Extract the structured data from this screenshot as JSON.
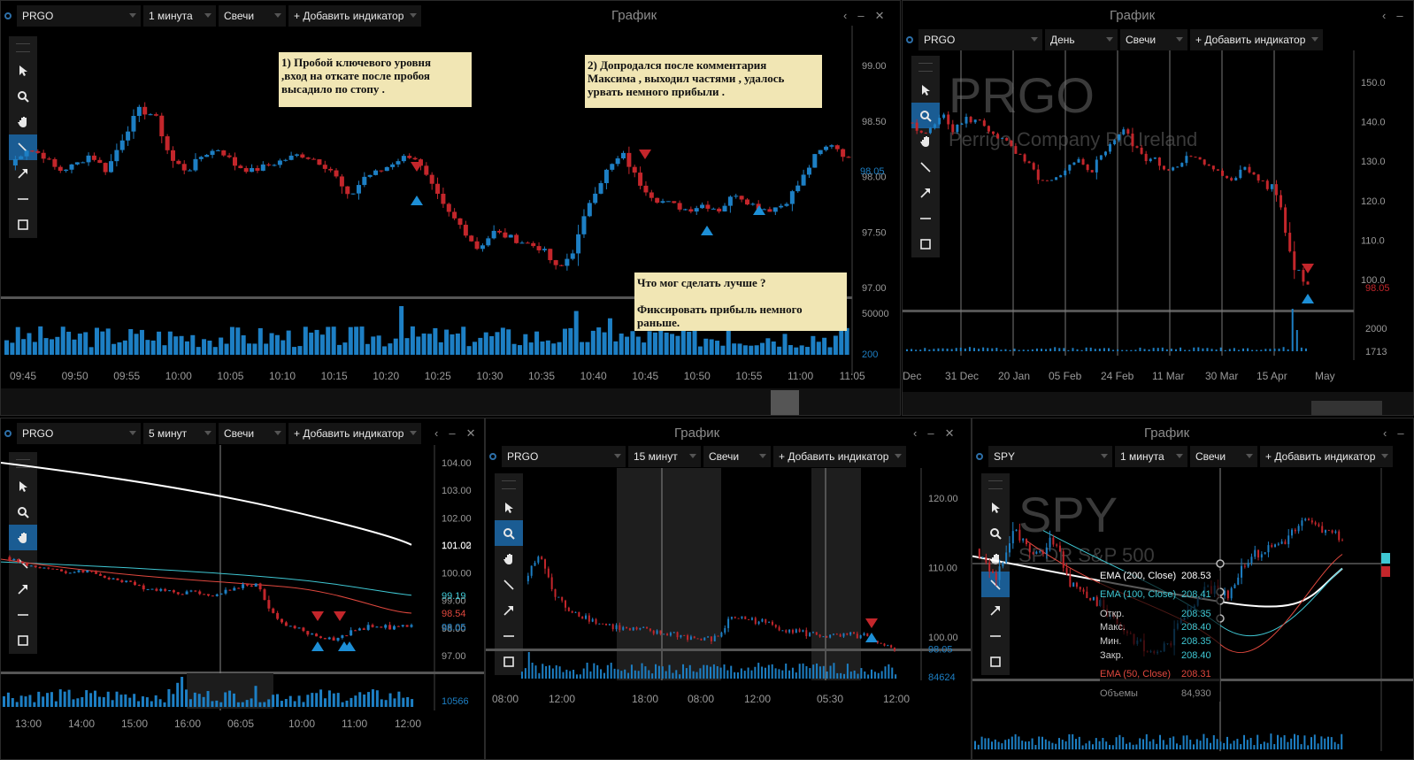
{
  "windows": {
    "w1": {
      "title": "График",
      "symbol": "PRGO",
      "interval": "1 минута",
      "type": "Свечи",
      "add": "+ Добавить индикатор",
      "yticks": [
        "99.00",
        "98.50",
        "98.00",
        "97.50",
        "97.00"
      ],
      "last_price": "98.05",
      "vol_ticks": [
        "50000",
        "200"
      ],
      "xticks": [
        "09:45",
        "09:50",
        "09:55",
        "10:00",
        "10:05",
        "10:10",
        "10:15",
        "10:20",
        "10:25",
        "10:30",
        "10:35",
        "10:40",
        "10:45",
        "10:50",
        "10:55",
        "11:00",
        "11:05"
      ],
      "notes": {
        "n1": [
          "1) Пробой ключевого уровня",
          ",вход на откате после пробоя",
          "высадило по стопу ."
        ],
        "n2": [
          "2) Допродался после комментария",
          "Максима ,  выходил частями , удалось",
          "урвать немного прибыли ."
        ],
        "n3": [
          "Что мог сделать лучше ?",
          "",
          "Фиксировать прибыль немного",
          "раньше."
        ]
      }
    },
    "w2": {
      "title": "График",
      "symbol": "PRGO",
      "interval": "День",
      "type": "Свечи",
      "add": "+ Добавить индикатор",
      "watermark": "PRGO",
      "watermark_sub": "Perrigo Company Plc Ireland",
      "yticks": [
        "150.0",
        "140.0",
        "130.0",
        "120.0",
        "110.0",
        "100.0"
      ],
      "last_price": "98.05",
      "vol_ticks": [
        "2000",
        "1713"
      ],
      "xticks": [
        "Dec",
        "31 Dec",
        "20 Jan",
        "05 Feb",
        "24 Feb",
        "11 Mar",
        "30 Mar",
        "15 Apr",
        "May"
      ]
    },
    "w3": {
      "symbol": "PRGO",
      "interval": "5 минут",
      "type": "Свечи",
      "add": "+ Добавить индикатор",
      "yticks": [
        "104.00",
        "103.00",
        "102.00",
        "101.00",
        "100.00",
        "99.00",
        "98.00",
        "97.00"
      ],
      "labels": {
        "white": "101.02",
        "cyan": "99.19",
        "red": "98.54",
        "last": "98.05"
      },
      "vol_tick": "10566",
      "xticks": [
        "13:00",
        "14:00",
        "15:00",
        "16:00",
        "06:05",
        "10:00",
        "11:00",
        "12:00"
      ]
    },
    "w4": {
      "title": "График",
      "symbol": "PRGO",
      "interval": "15 минут",
      "type": "Свечи",
      "add": "+ Добавить индикатор",
      "yticks": [
        "120.00",
        "110.00",
        "100.00"
      ],
      "last_price": "98.05",
      "vol_tick": "84624",
      "xticks": [
        "08:00",
        "12:00",
        "18:00",
        "08:00",
        "12:00",
        "05:30",
        "12:00"
      ]
    },
    "w5": {
      "title": "График",
      "symbol": "SPY",
      "interval": "1 минута",
      "type": "Свечи",
      "add": "+ Добавить индикатор",
      "watermark": "SPY",
      "watermark_sub": "SPDR S&P 500",
      "legend": [
        {
          "label": "EMA (200, Close)",
          "value": "208.53",
          "color": "#ffffff"
        },
        {
          "label": "EMA (100, Close)",
          "value": "208.41",
          "color": "#3fc7d3"
        },
        {
          "label": "Откр.",
          "value": "208.35",
          "color": "#cfcfcf"
        },
        {
          "label": "Макс.",
          "value": "208.40",
          "color": "#cfcfcf"
        },
        {
          "label": "Мин.",
          "value": "208.35",
          "color": "#cfcfcf"
        },
        {
          "label": "Закр.",
          "value": "208.40",
          "color": "#cfcfcf"
        },
        {
          "label": "EMA (50, Close)",
          "value": "208.31",
          "color": "#e0483e"
        },
        {
          "label": "Объемы",
          "value": "84,930",
          "color": "#8c8c8c"
        }
      ]
    }
  },
  "colors": {
    "up": "#1d7fc4",
    "down": "#c3262b",
    "bg": "#000000",
    "accent": "#1a5c93"
  }
}
